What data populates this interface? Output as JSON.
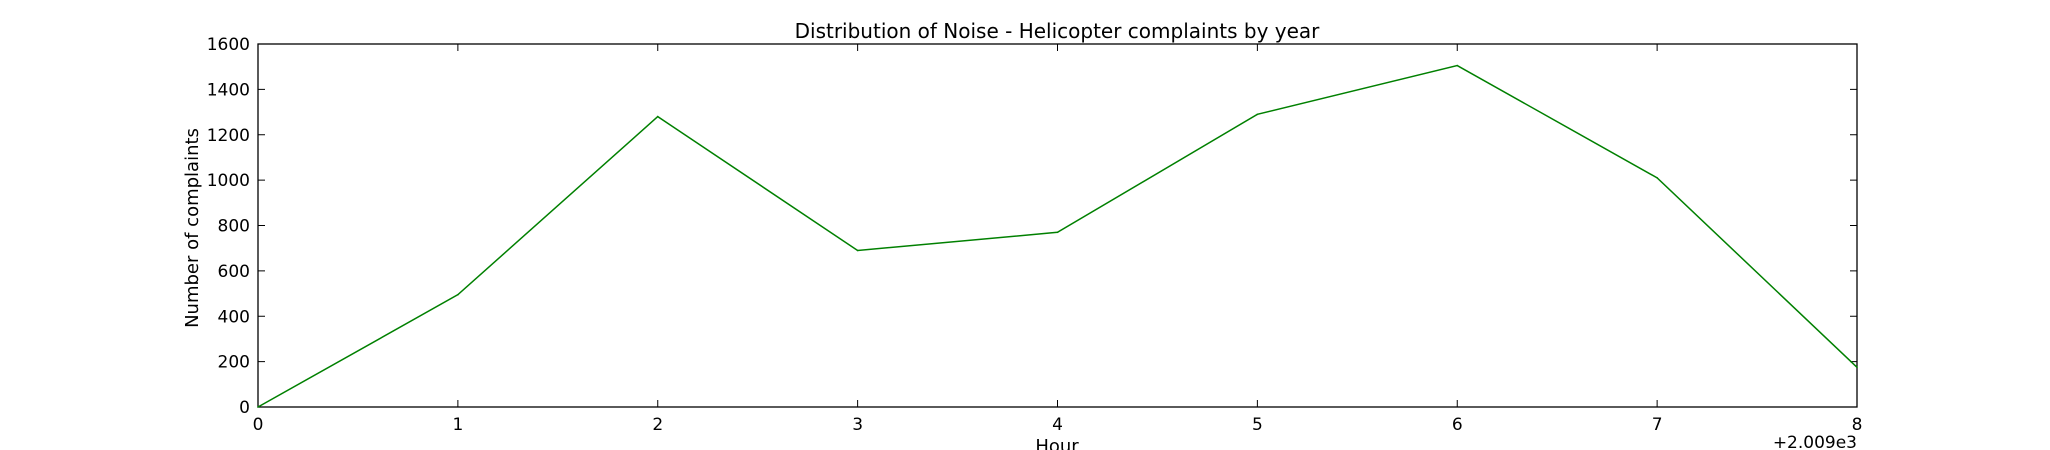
{
  "chart_data": {
    "type": "line",
    "title": "Distribution of  Noise - Helicopter complaints by year",
    "xlabel": "Hour",
    "ylabel": "Number of complaints",
    "x_offset_label": "+2.009e3",
    "x": [
      0,
      1,
      2,
      3,
      4,
      5,
      6,
      7,
      8
    ],
    "x_tick_labels": [
      "0",
      "1",
      "2",
      "3",
      "4",
      "5",
      "6",
      "7",
      "8"
    ],
    "y_ticks": [
      0,
      200,
      400,
      600,
      800,
      1000,
      1200,
      1400,
      1600
    ],
    "xlim": [
      0,
      8
    ],
    "ylim": [
      0,
      1600
    ],
    "grid": false,
    "series": [
      {
        "values": [
          0,
          495,
          1280,
          690,
          770,
          1290,
          1505,
          1010,
          175
        ],
        "color": "#008000"
      }
    ]
  }
}
